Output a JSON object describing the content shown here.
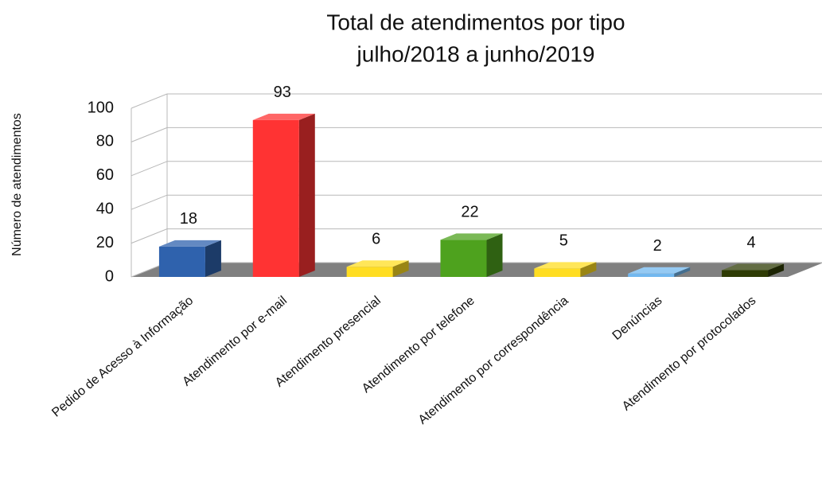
{
  "chart_data": {
    "type": "bar3d",
    "title": "Total de atendimentos por tipo",
    "subtitle": "julho/2018 a junho/2019",
    "y_label": "Número de atendimentos",
    "categories": [
      "Pedido de Acesso à Informação",
      "Atendimento por e-mail",
      "Atendimento presencial",
      "Atendimento por telefone",
      "Atendimento por correspondência",
      "Denúncias",
      "Atendimento por protocolados"
    ],
    "values": [
      18,
      93,
      6,
      22,
      5,
      2,
      4
    ],
    "colors": [
      "#2f62ad",
      "#ff3333",
      "#ffdd22",
      "#4ea21e",
      "#ffdd22",
      "#72b8ef",
      "#2f3c05"
    ],
    "ylim": [
      0,
      100
    ],
    "yticks": [
      0,
      20,
      40,
      60,
      80,
      100
    ],
    "grid": true
  }
}
